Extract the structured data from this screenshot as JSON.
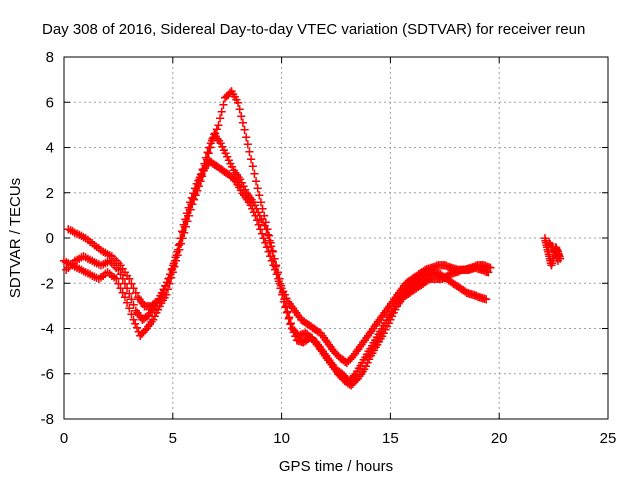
{
  "chart_data": {
    "type": "scatter",
    "title": "Day 308 of 2016, Sidereal Day-to-day VTEC variation (SDTVAR) for receiver reun",
    "xlabel": "GPS time / hours",
    "ylabel": "SDTVAR / TECUs",
    "xlim": [
      0,
      25
    ],
    "ylim": [
      -8,
      8
    ],
    "xticks": [
      0,
      5,
      10,
      15,
      20,
      25
    ],
    "yticks": [
      -8,
      -6,
      -4,
      -2,
      0,
      2,
      4,
      6,
      8
    ],
    "x_tick_labels": [
      "0",
      "5",
      "10",
      "15",
      "20",
      "25"
    ],
    "y_tick_labels": [
      "-8",
      "-6",
      "-4",
      "-2",
      "0",
      "2",
      "4",
      "6",
      "8"
    ],
    "grid": true,
    "marker": "+",
    "color": "#ff0000",
    "series": [
      {
        "name": "track-1",
        "x": [
          0.0,
          0.4,
          0.8,
          1.2,
          1.6,
          2.0,
          2.4,
          2.8,
          3.2,
          3.5,
          3.8,
          4.1,
          4.4,
          4.7,
          5.0,
          5.3,
          5.6,
          5.9,
          6.2,
          6.5,
          6.8,
          7.1,
          7.4,
          7.7,
          8.0,
          8.3,
          8.6,
          8.9,
          9.2,
          9.5,
          9.8,
          10.1,
          10.4,
          10.7,
          11.0,
          11.3,
          11.6,
          11.9,
          12.2,
          12.5,
          12.8,
          13.1,
          13.4,
          13.7,
          14.0,
          14.3,
          14.6,
          14.9,
          15.2,
          15.5,
          15.8,
          16.1,
          16.4,
          16.7,
          17.0,
          17.3,
          17.6,
          17.9,
          18.2,
          18.5,
          18.8,
          19.1,
          19.4
        ],
        "y": [
          -1.0,
          -1.2,
          -1.4,
          -1.6,
          -1.8,
          -1.5,
          -1.8,
          -2.6,
          -3.6,
          -4.3,
          -4.0,
          -3.6,
          -3.0,
          -2.5,
          -1.5,
          -0.5,
          0.5,
          1.5,
          2.3,
          3.2,
          4.3,
          5.0,
          6.2,
          6.5,
          6.0,
          4.8,
          3.5,
          2.2,
          1.0,
          -0.2,
          -1.6,
          -2.8,
          -3.8,
          -4.5,
          -4.6,
          -4.4,
          -4.6,
          -5.0,
          -5.4,
          -5.8,
          -6.0,
          -6.3,
          -6.0,
          -5.5,
          -5.0,
          -4.5,
          -4.0,
          -3.5,
          -3.0,
          -2.5,
          -2.2,
          -2.0,
          -1.8,
          -1.6,
          -1.5,
          -1.6,
          -1.8,
          -2.0,
          -2.2,
          -2.4,
          -2.5,
          -2.6,
          -2.7
        ]
      },
      {
        "name": "track-2",
        "x": [
          0.2,
          0.6,
          1.0,
          1.4,
          1.8,
          2.2,
          2.6,
          3.0,
          3.4,
          3.7,
          4.0,
          4.3,
          4.6,
          4.9,
          5.2,
          5.5,
          5.8,
          6.1,
          6.4,
          6.7,
          7.0,
          7.3,
          7.6,
          7.9,
          8.2,
          8.5,
          8.8,
          9.1,
          9.4,
          9.7,
          10.0,
          10.3,
          10.6,
          10.9,
          11.2,
          11.5,
          11.8,
          12.1,
          12.4,
          12.7,
          13.0,
          13.3,
          13.6,
          13.9,
          14.2,
          14.5,
          14.8,
          15.1,
          15.4,
          15.7,
          16.0,
          16.3,
          16.6,
          16.9,
          17.2,
          17.5,
          17.8,
          18.1,
          18.4,
          18.7,
          19.0,
          19.3,
          19.6
        ],
        "y": [
          0.4,
          0.2,
          0.0,
          -0.3,
          -0.6,
          -0.8,
          -1.2,
          -1.8,
          -2.6,
          -3.0,
          -3.0,
          -2.8,
          -2.3,
          -1.6,
          -0.6,
          0.6,
          1.6,
          2.4,
          3.0,
          3.4,
          3.2,
          3.0,
          2.8,
          2.5,
          2.0,
          1.6,
          1.0,
          0.2,
          -0.6,
          -1.4,
          -2.2,
          -2.8,
          -3.2,
          -3.6,
          -3.8,
          -4.0,
          -4.2,
          -4.6,
          -5.0,
          -5.3,
          -5.5,
          -5.2,
          -4.8,
          -4.4,
          -4.0,
          -3.6,
          -3.2,
          -2.8,
          -2.4,
          -2.0,
          -1.8,
          -1.6,
          -1.4,
          -1.3,
          -1.2,
          -1.2,
          -1.3,
          -1.4,
          -1.4,
          -1.3,
          -1.2,
          -1.2,
          -1.3
        ]
      },
      {
        "name": "track-3",
        "x": [
          0.1,
          0.5,
          0.9,
          1.3,
          1.7,
          2.1,
          2.5,
          2.9,
          3.3,
          3.6,
          3.9,
          4.2,
          4.5,
          4.8,
          5.1,
          5.4,
          5.7,
          6.0,
          6.3,
          6.6,
          6.9,
          7.2,
          7.5,
          7.8,
          8.1,
          8.4,
          8.7,
          9.0,
          9.3,
          9.6,
          9.9,
          10.2,
          10.5,
          10.8,
          11.1,
          11.4,
          11.7,
          12.0,
          12.3,
          12.6,
          12.9,
          13.2,
          13.5,
          13.8,
          14.1,
          14.4,
          14.7,
          15.0,
          15.3,
          15.6,
          15.9,
          16.2,
          16.5,
          16.8,
          17.1,
          17.4,
          17.7,
          18.0,
          18.3,
          18.6,
          18.9,
          19.2,
          19.5
        ],
        "y": [
          -1.4,
          -1.0,
          -0.8,
          -1.0,
          -1.2,
          -1.0,
          -1.4,
          -2.2,
          -3.2,
          -3.6,
          -3.4,
          -3.0,
          -2.4,
          -1.8,
          -1.0,
          0.0,
          1.0,
          2.0,
          2.8,
          3.8,
          4.6,
          4.2,
          3.6,
          3.0,
          2.6,
          2.0,
          1.6,
          1.0,
          0.4,
          -0.6,
          -1.8,
          -3.0,
          -4.0,
          -4.3,
          -4.2,
          -4.4,
          -4.8,
          -5.2,
          -5.6,
          -6.0,
          -6.3,
          -6.5,
          -6.2,
          -5.8,
          -5.2,
          -4.7,
          -4.2,
          -3.6,
          -3.0,
          -2.6,
          -2.4,
          -2.2,
          -2.0,
          -1.8,
          -1.8,
          -1.8,
          -1.6,
          -1.5,
          -1.4,
          -1.4,
          -1.3,
          -1.4,
          -1.5
        ]
      },
      {
        "name": "track-4",
        "x": [
          22.1,
          22.2,
          22.3,
          22.4,
          22.5,
          22.6,
          22.7,
          22.8,
          22.3,
          22.5,
          22.7
        ],
        "y": [
          0.0,
          -0.4,
          -0.8,
          -1.2,
          -0.8,
          -0.4,
          -0.6,
          -0.9,
          -0.2,
          -0.5,
          -1.0
        ]
      }
    ]
  }
}
